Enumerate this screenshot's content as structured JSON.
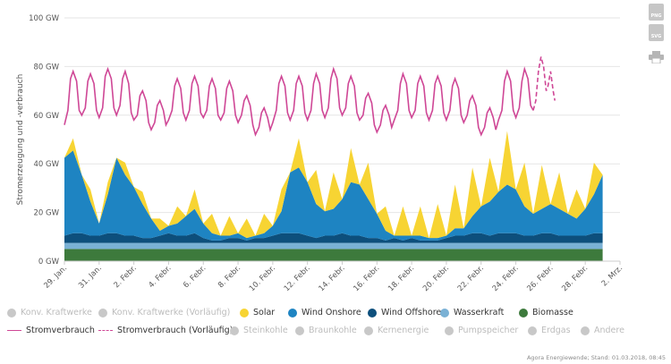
{
  "chart_data": {
    "type": "area",
    "ylabel": "Stromerzeugung und -verbrauch",
    "yticks": [
      "0 GW",
      "20 GW",
      "40 GW",
      "60 GW",
      "80 GW",
      "100 GW"
    ],
    "ylim": [
      0,
      100
    ],
    "x_start_day": 0,
    "x_end_day": 32,
    "xticks": [
      "29. Jan.",
      "31. Jan.",
      "2. Febr.",
      "4. Febr.",
      "6. Febr.",
      "8. Febr.",
      "10. Febr.",
      "12. Febr.",
      "14. Febr.",
      "16. Febr.",
      "18. Febr.",
      "20. Febr.",
      "22. Febr.",
      "24. Febr.",
      "26. Febr.",
      "28. Febr.",
      "2. Mrz."
    ],
    "days": [
      0.0,
      0.5,
      1.0,
      1.5,
      2.0,
      2.5,
      3.0,
      3.5,
      4.0,
      4.5,
      5.0,
      5.5,
      6.0,
      6.5,
      7.0,
      7.5,
      8.0,
      8.5,
      9.0,
      9.5,
      10.0,
      10.5,
      11.0,
      11.5,
      12.0,
      12.5,
      13.0,
      13.5,
      14.0,
      14.5,
      15.0,
      15.5,
      16.0,
      16.5,
      17.0,
      17.5,
      18.0,
      18.5,
      19.0,
      19.5,
      20.0,
      20.5,
      21.0,
      21.5,
      22.0,
      22.5,
      23.0,
      23.5,
      24.0,
      24.5,
      25.0,
      25.5,
      26.0,
      26.5,
      27.0,
      27.5,
      28.0,
      28.5,
      29.0,
      29.5,
      30.0,
      30.5,
      31.0
    ],
    "series": [
      {
        "name": "Biomasse",
        "color": "#3d7a3c",
        "values": [
          5,
          5,
          5,
          5,
          5,
          5,
          5,
          5,
          5,
          5,
          5,
          5,
          5,
          5,
          5,
          5,
          5,
          5,
          5,
          5,
          5,
          5,
          5,
          5,
          5,
          5,
          5,
          5,
          5,
          5,
          5,
          5,
          5,
          5,
          5,
          5,
          5,
          5,
          5,
          5,
          5,
          5,
          5,
          5,
          5,
          5,
          5,
          5,
          5,
          5,
          5,
          5,
          5,
          5,
          5,
          5,
          5,
          5,
          5,
          5,
          5,
          5,
          5
        ]
      },
      {
        "name": "Wasserkraft",
        "color": "#7ab1d5",
        "values": [
          2.5,
          2.5,
          2.5,
          2.5,
          2.5,
          2.5,
          2.5,
          2.5,
          2.5,
          2.5,
          2.5,
          2.5,
          2.5,
          2.5,
          2.5,
          2.5,
          2.5,
          2.5,
          2.5,
          2.5,
          2.5,
          2.5,
          2.5,
          2.5,
          2.5,
          2.5,
          2.5,
          2.5,
          2.5,
          2.5,
          2.5,
          2.5,
          2.5,
          2.5,
          2.5,
          2.5,
          2.5,
          2.5,
          2.5,
          2.5,
          2.5,
          2.5,
          2.5,
          2.5,
          2.5,
          2.5,
          2.5,
          2.5,
          2.5,
          2.5,
          2.5,
          2.5,
          2.5,
          2.5,
          2.5,
          2.5,
          2.5,
          2.5,
          2.5,
          2.5,
          2.5,
          2.5,
          2.5
        ]
      },
      {
        "name": "Wind Offshore",
        "color": "#0d4f7c",
        "values": [
          3,
          4,
          4,
          3,
          3,
          4,
          4,
          3,
          3,
          2,
          2,
          3,
          4,
          3,
          3,
          4,
          2,
          1,
          1,
          2,
          2,
          1,
          2,
          2,
          3,
          4,
          4,
          4,
          3,
          2,
          3,
          3,
          4,
          3,
          3,
          2,
          2,
          1,
          2,
          1,
          2,
          1,
          1,
          1,
          2,
          3,
          3,
          4,
          4,
          3,
          4,
          4,
          4,
          3,
          3,
          4,
          4,
          3,
          3,
          3,
          3,
          4,
          4
        ]
      },
      {
        "name": "Wind Onshore",
        "color": "#1e84c2",
        "values": [
          32,
          34,
          24,
          14,
          5,
          16,
          31,
          25,
          20,
          14,
          8,
          2,
          3,
          5,
          8,
          10,
          6,
          3,
          2,
          1,
          2,
          1,
          1,
          2,
          4,
          9,
          25,
          27,
          22,
          14,
          10,
          11,
          14,
          22,
          21,
          16,
          10,
          4,
          1,
          2,
          1,
          2,
          1,
          1,
          1,
          3,
          3,
          7,
          11,
          14,
          17,
          20,
          18,
          12,
          9,
          10,
          12,
          11,
          9,
          7,
          11,
          16,
          24
        ]
      },
      {
        "name": "Solar",
        "color": "#f7d433",
        "values": [
          0,
          5,
          0,
          5,
          0,
          5,
          0,
          5,
          0,
          5,
          0,
          5,
          0,
          7,
          0,
          8,
          0,
          8,
          0,
          8,
          0,
          8,
          0,
          8,
          0,
          9,
          0,
          12,
          0,
          14,
          0,
          15,
          0,
          14,
          0,
          15,
          0,
          10,
          0,
          12,
          0,
          12,
          0,
          14,
          0,
          18,
          0,
          20,
          0,
          18,
          0,
          22,
          0,
          18,
          0,
          18,
          0,
          15,
          0,
          12,
          0,
          13,
          0
        ]
      },
      {
        "name": "Steinkohle",
        "color": "#c8c8c8",
        "values": []
      },
      {
        "name": "Braunkohle",
        "color": "#c8c8c8",
        "values": []
      },
      {
        "name": "Kernenergie",
        "color": "#c8c8c8",
        "values": []
      },
      {
        "name": "Pumpspeicher",
        "color": "#c8c8c8",
        "values": []
      },
      {
        "name": "Erdgas",
        "color": "#c8c8c8",
        "values": []
      },
      {
        "name": "Andere",
        "color": "#c8c8c8",
        "values": []
      },
      {
        "name": "Konv. Kraftwerke",
        "color": "#c8c8c8",
        "values": []
      },
      {
        "name": "Konv. Kraftwerke (Vorläufig)",
        "color": "#c8c8c8",
        "values": []
      }
    ],
    "consumption": {
      "name": "Stromverbrauch",
      "color": "#cf4796",
      "values": [
        [
          0.0,
          56
        ],
        [
          0.2,
          62
        ],
        [
          0.35,
          75
        ],
        [
          0.5,
          78
        ],
        [
          0.7,
          74
        ],
        [
          0.85,
          62
        ],
        [
          1.0,
          60
        ],
        [
          1.2,
          63
        ],
        [
          1.35,
          74
        ],
        [
          1.5,
          77
        ],
        [
          1.7,
          73
        ],
        [
          1.85,
          62
        ],
        [
          2.0,
          59
        ],
        [
          2.2,
          63
        ],
        [
          2.35,
          76
        ],
        [
          2.5,
          79
        ],
        [
          2.7,
          75
        ],
        [
          2.85,
          63
        ],
        [
          3.0,
          60
        ],
        [
          3.2,
          64
        ],
        [
          3.35,
          75
        ],
        [
          3.5,
          78
        ],
        [
          3.7,
          73
        ],
        [
          3.85,
          61
        ],
        [
          4.0,
          58
        ],
        [
          4.2,
          60
        ],
        [
          4.35,
          68
        ],
        [
          4.5,
          70
        ],
        [
          4.7,
          66
        ],
        [
          4.85,
          57
        ],
        [
          5.0,
          54
        ],
        [
          5.2,
          57
        ],
        [
          5.35,
          64
        ],
        [
          5.5,
          66
        ],
        [
          5.7,
          62
        ],
        [
          5.85,
          56
        ],
        [
          6.0,
          58
        ],
        [
          6.2,
          62
        ],
        [
          6.35,
          72
        ],
        [
          6.5,
          75
        ],
        [
          6.7,
          71
        ],
        [
          6.85,
          61
        ],
        [
          7.0,
          58
        ],
        [
          7.2,
          62
        ],
        [
          7.35,
          73
        ],
        [
          7.5,
          76
        ],
        [
          7.7,
          72
        ],
        [
          7.85,
          61
        ],
        [
          8.0,
          59
        ],
        [
          8.2,
          62
        ],
        [
          8.35,
          72
        ],
        [
          8.5,
          75
        ],
        [
          8.7,
          71
        ],
        [
          8.85,
          60
        ],
        [
          9.0,
          58
        ],
        [
          9.2,
          61
        ],
        [
          9.35,
          71
        ],
        [
          9.5,
          74
        ],
        [
          9.7,
          70
        ],
        [
          9.85,
          60
        ],
        [
          10.0,
          57
        ],
        [
          10.2,
          60
        ],
        [
          10.35,
          66
        ],
        [
          10.5,
          68
        ],
        [
          10.7,
          64
        ],
        [
          10.85,
          56
        ],
        [
          11.0,
          52
        ],
        [
          11.2,
          55
        ],
        [
          11.35,
          61
        ],
        [
          11.5,
          63
        ],
        [
          11.7,
          59
        ],
        [
          11.85,
          54
        ],
        [
          12.0,
          57
        ],
        [
          12.2,
          62
        ],
        [
          12.35,
          73
        ],
        [
          12.5,
          76
        ],
        [
          12.7,
          72
        ],
        [
          12.85,
          61
        ],
        [
          13.0,
          58
        ],
        [
          13.2,
          62
        ],
        [
          13.35,
          73
        ],
        [
          13.5,
          76
        ],
        [
          13.7,
          72
        ],
        [
          13.85,
          61
        ],
        [
          14.0,
          58
        ],
        [
          14.2,
          62
        ],
        [
          14.35,
          73
        ],
        [
          14.5,
          77
        ],
        [
          14.7,
          73
        ],
        [
          14.85,
          62
        ],
        [
          15.0,
          59
        ],
        [
          15.2,
          63
        ],
        [
          15.35,
          75
        ],
        [
          15.5,
          79
        ],
        [
          15.7,
          75
        ],
        [
          15.85,
          63
        ],
        [
          16.0,
          60
        ],
        [
          16.2,
          63
        ],
        [
          16.35,
          73
        ],
        [
          16.5,
          76
        ],
        [
          16.7,
          72
        ],
        [
          16.85,
          61
        ],
        [
          17.0,
          58
        ],
        [
          17.2,
          60
        ],
        [
          17.35,
          67
        ],
        [
          17.5,
          69
        ],
        [
          17.7,
          65
        ],
        [
          17.85,
          56
        ],
        [
          18.0,
          53
        ],
        [
          18.2,
          56
        ],
        [
          18.35,
          62
        ],
        [
          18.5,
          64
        ],
        [
          18.7,
          60
        ],
        [
          18.85,
          55
        ],
        [
          19.0,
          58
        ],
        [
          19.2,
          62
        ],
        [
          19.35,
          73
        ],
        [
          19.5,
          77
        ],
        [
          19.7,
          73
        ],
        [
          19.85,
          62
        ],
        [
          20.0,
          59
        ],
        [
          20.2,
          62
        ],
        [
          20.35,
          73
        ],
        [
          20.5,
          76
        ],
        [
          20.7,
          72
        ],
        [
          20.85,
          61
        ],
        [
          21.0,
          58
        ],
        [
          21.2,
          62
        ],
        [
          21.35,
          73
        ],
        [
          21.5,
          76
        ],
        [
          21.7,
          72
        ],
        [
          21.85,
          61
        ],
        [
          22.0,
          58
        ],
        [
          22.2,
          62
        ],
        [
          22.35,
          72
        ],
        [
          22.5,
          75
        ],
        [
          22.7,
          71
        ],
        [
          22.85,
          60
        ],
        [
          23.0,
          57
        ],
        [
          23.2,
          60
        ],
        [
          23.35,
          66
        ],
        [
          23.5,
          68
        ],
        [
          23.7,
          64
        ],
        [
          23.85,
          55
        ],
        [
          24.0,
          52
        ],
        [
          24.2,
          55
        ],
        [
          24.35,
          61
        ],
        [
          24.5,
          63
        ],
        [
          24.7,
          59
        ],
        [
          24.85,
          54
        ],
        [
          25.0,
          58
        ],
        [
          25.2,
          62
        ],
        [
          25.35,
          74
        ],
        [
          25.5,
          78
        ],
        [
          25.7,
          74
        ],
        [
          25.85,
          62
        ],
        [
          26.0,
          59
        ],
        [
          26.2,
          63
        ],
        [
          26.35,
          74
        ],
        [
          26.5,
          79
        ],
        [
          26.7,
          75
        ],
        [
          26.85,
          64
        ],
        [
          27.0,
          62
        ]
      ]
    },
    "consumption_provisional": {
      "name": "Stromverbrauch (Vorläufig)",
      "color": "#cf4796",
      "values": [
        [
          27.0,
          62
        ],
        [
          27.15,
          66
        ],
        [
          27.3,
          78
        ],
        [
          27.45,
          84
        ],
        [
          27.6,
          80
        ],
        [
          27.75,
          70
        ],
        [
          27.85,
          72
        ],
        [
          28.0,
          78
        ],
        [
          28.15,
          70
        ],
        [
          28.25,
          66
        ]
      ]
    },
    "legend_rows": [
      [
        {
          "label": "Konv. Kraftwerke",
          "kind": "dot",
          "color": "#c8c8c8",
          "active": false
        },
        {
          "label": "Konv. Kraftwerke (Vorläufig)",
          "kind": "dot",
          "color": "#c8c8c8",
          "active": false
        },
        {
          "label": "Solar",
          "kind": "dot",
          "color": "#f7d433",
          "active": true
        },
        {
          "label": "Wind Onshore",
          "kind": "dot",
          "color": "#1e84c2",
          "active": true
        },
        {
          "label": "Wind Offshore",
          "kind": "dot",
          "color": "#0d4f7c",
          "active": true
        },
        {
          "label": "Wasserkraft",
          "kind": "dot",
          "color": "#7ab1d5",
          "active": true
        },
        {
          "label": "Biomasse",
          "kind": "dot",
          "color": "#3d7a3c",
          "active": true
        }
      ],
      [
        {
          "label": "Stromverbrauch",
          "kind": "line",
          "color": "#cf4796",
          "active": true
        },
        {
          "label": "Stromverbrauch (Vorläufig)",
          "kind": "dash",
          "color": "#cf4796",
          "active": true
        },
        {
          "label": "Steinkohle",
          "kind": "dot",
          "color": "#c8c8c8",
          "active": false
        },
        {
          "label": "Braunkohle",
          "kind": "dot",
          "color": "#c8c8c8",
          "active": false
        },
        {
          "label": "Kernenergie",
          "kind": "dot",
          "color": "#c8c8c8",
          "active": false
        },
        {
          "label": "Pumpspeicher",
          "kind": "dot",
          "color": "#c8c8c8",
          "active": false
        },
        {
          "label": "Erdgas",
          "kind": "dot",
          "color": "#c8c8c8",
          "active": false
        },
        {
          "label": "Andere",
          "kind": "dot",
          "color": "#c8c8c8",
          "active": false
        }
      ]
    ],
    "grid": true
  },
  "toolbar": {
    "png_label": "PNG",
    "svg_label": "SVG",
    "print_icon": "printer-icon"
  },
  "credit": "Agora Energiewende; Stand: 01.03.2018, 08:45"
}
